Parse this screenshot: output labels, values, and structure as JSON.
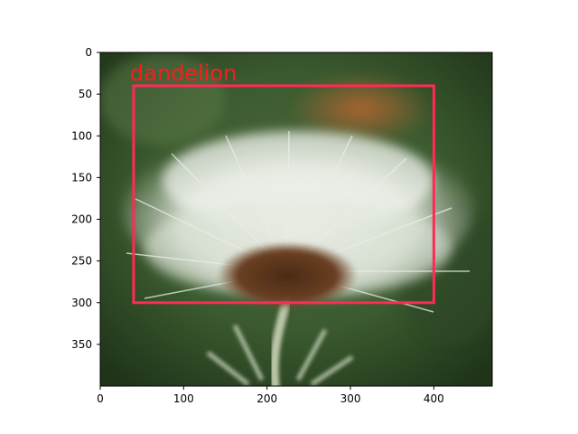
{
  "image": {
    "description_icon": "dandelion-seedhead-photo",
    "width": 470,
    "height": 400
  },
  "axes": {
    "x_ticks": [
      "0",
      "100",
      "200",
      "300",
      "400"
    ],
    "y_ticks": [
      "0",
      "50",
      "100",
      "150",
      "200",
      "250",
      "300",
      "350"
    ]
  },
  "detection": {
    "label": "dandelion",
    "box": {
      "x_min": 40,
      "y_min": 40,
      "x_max": 400,
      "y_max": 300
    },
    "color": "#ff2a55",
    "text_color": "#ff1a1a"
  }
}
